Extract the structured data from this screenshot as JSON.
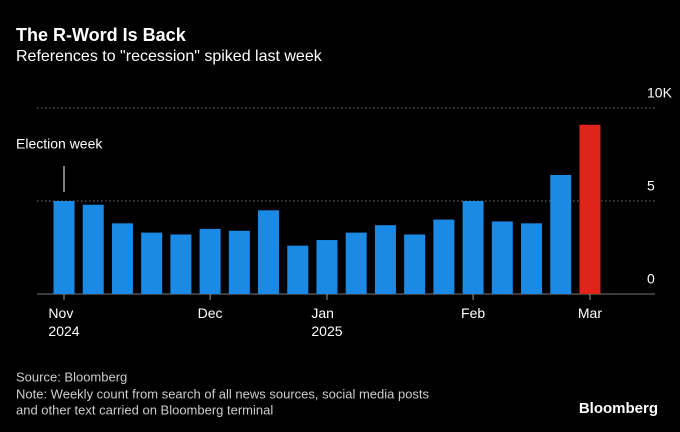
{
  "chart_data": {
    "type": "bar",
    "title": "The R-Word Is Back",
    "subtitle": "References to \"recession\" spiked last week",
    "categories": [
      "Nov\n2024",
      null,
      null,
      null,
      null,
      "Dec",
      null,
      null,
      null,
      "Jan\n2025",
      null,
      null,
      null,
      null,
      "Feb",
      null,
      null,
      null,
      "Mar"
    ],
    "values": [
      5.0,
      4.8,
      3.8,
      3.3,
      3.2,
      3.5,
      3.4,
      4.5,
      2.6,
      2.9,
      3.3,
      3.7,
      3.2,
      4.0,
      5.0,
      3.9,
      3.8,
      6.4,
      9.1
    ],
    "colors": [
      "#1a8ae5",
      "#1a8ae5",
      "#1a8ae5",
      "#1a8ae5",
      "#1a8ae5",
      "#1a8ae5",
      "#1a8ae5",
      "#1a8ae5",
      "#1a8ae5",
      "#1a8ae5",
      "#1a8ae5",
      "#1a8ae5",
      "#1a8ae5",
      "#1a8ae5",
      "#1a8ae5",
      "#1a8ae5",
      "#1a8ae5",
      "#1a8ae5",
      "#e0241b"
    ],
    "ylim": [
      0,
      10
    ],
    "yticks": [
      0,
      5,
      {
        "value": 10,
        "label": "10K"
      }
    ],
    "grid": true,
    "annotation": {
      "text": "Election week",
      "index": 0
    },
    "source": "Source: Bloomberg",
    "note": [
      "Note: Weekly count from search of all news sources, social media posts",
      "and other text carried on Bloomberg terminal"
    ],
    "brand": "Bloomberg"
  }
}
